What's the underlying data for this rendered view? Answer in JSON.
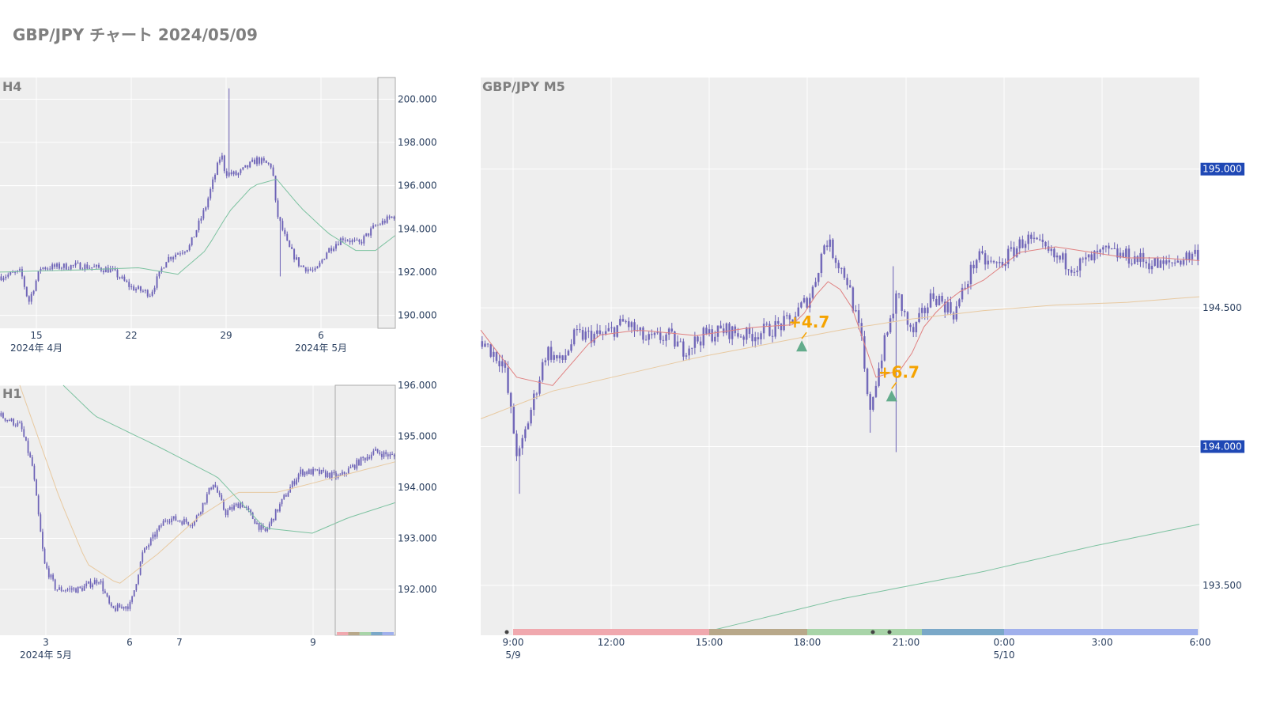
{
  "title": "GBP/JPY チャート 2024/05/09",
  "colors": {
    "plot_bg": "#eeeeee",
    "grid": "#ffffff",
    "candle": "#6a5fb5",
    "sma_short": "#e08080",
    "sma_mid": "#e8c9a0",
    "sma_long": "#7cc2a0",
    "arrow": "#4aa07a",
    "annotation": "#f5a300",
    "badge": "#1f48b5"
  },
  "chart_data": [
    {
      "id": "h4",
      "type": "candlestick",
      "title": "H4",
      "ylim": [
        189.4,
        201.0
      ],
      "y_ticks": [
        "190.000",
        "192.000",
        "194.000",
        "196.000",
        "198.000",
        "200.000"
      ],
      "x_ticks": [
        {
          "label": "15",
          "sub": "2024年 4月"
        },
        {
          "label": "22",
          "sub": ""
        },
        {
          "label": "29",
          "sub": ""
        },
        {
          "label": "6",
          "sub": "2024年 5月"
        }
      ],
      "series": [
        {
          "name": "",
          "kind": "candles",
          "close_path": [
            [
              0,
              191.8
            ],
            [
              0.05,
              192.0
            ],
            [
              0.07,
              190.6
            ],
            [
              0.1,
              192.2
            ],
            [
              0.2,
              192.3
            ],
            [
              0.28,
              192.1
            ],
            [
              0.33,
              191.3
            ],
            [
              0.38,
              191.0
            ],
            [
              0.42,
              192.6
            ],
            [
              0.48,
              193.2
            ],
            [
              0.52,
              195.0
            ],
            [
              0.56,
              197.5
            ],
            [
              0.57,
              196.6
            ],
            [
              0.6,
              196.5
            ],
            [
              0.65,
              197.2
            ],
            [
              0.69,
              196.9
            ],
            [
              0.7,
              194.8
            ],
            [
              0.73,
              193.2
            ],
            [
              0.76,
              192.3
            ],
            [
              0.8,
              192.0
            ],
            [
              0.83,
              193.0
            ],
            [
              0.87,
              193.6
            ],
            [
              0.91,
              193.3
            ],
            [
              0.95,
              194.1
            ],
            [
              1,
              194.6
            ]
          ],
          "spikes": [
            [
              0.578,
              200.5
            ],
            [
              0.71,
              191.8
            ]
          ]
        },
        {
          "name": "",
          "kind": "line",
          "color": "sma_long",
          "path": [
            [
              0,
              192.0
            ],
            [
              0.2,
              192.1
            ],
            [
              0.35,
              192.2
            ],
            [
              0.45,
              191.9
            ],
            [
              0.52,
              193.0
            ],
            [
              0.58,
              194.8
            ],
            [
              0.64,
              196.0
            ],
            [
              0.7,
              196.3
            ],
            [
              0.76,
              195.0
            ],
            [
              0.83,
              193.8
            ],
            [
              0.9,
              193.0
            ],
            [
              0.95,
              193.0
            ],
            [
              1,
              193.7
            ]
          ]
        }
      ]
    },
    {
      "id": "h1",
      "type": "candlestick",
      "title": "H1",
      "ylim": [
        191.1,
        196.0
      ],
      "y_ticks": [
        "192.000",
        "193.000",
        "194.000",
        "195.000",
        "196.000"
      ],
      "x_ticks": [
        {
          "label": "3",
          "sub": "2024年 5月"
        },
        {
          "label": "6",
          "sub": ""
        },
        {
          "label": "7",
          "sub": ""
        },
        {
          "label": "9",
          "sub": ""
        }
      ],
      "series": [
        {
          "name": "",
          "kind": "candles",
          "close_path": [
            [
              0,
              195.4
            ],
            [
              0.05,
              195.2
            ],
            [
              0.08,
              194.4
            ],
            [
              0.11,
              192.5
            ],
            [
              0.14,
              192.0
            ],
            [
              0.2,
              192.0
            ],
            [
              0.25,
              192.2
            ],
            [
              0.28,
              191.6
            ],
            [
              0.33,
              191.7
            ],
            [
              0.36,
              192.7
            ],
            [
              0.42,
              193.4
            ],
            [
              0.49,
              193.3
            ],
            [
              0.54,
              194.1
            ],
            [
              0.57,
              193.5
            ],
            [
              0.61,
              193.7
            ],
            [
              0.67,
              193.1
            ],
            [
              0.72,
              193.8
            ],
            [
              0.76,
              194.3
            ],
            [
              0.8,
              194.3
            ],
            [
              0.86,
              194.2
            ],
            [
              0.91,
              194.5
            ],
            [
              0.95,
              194.7
            ],
            [
              1,
              194.6
            ]
          ]
        },
        {
          "name": "",
          "kind": "line",
          "color": "sma_mid",
          "path": [
            [
              0.05,
              196.0
            ],
            [
              0.15,
              193.8
            ],
            [
              0.22,
              192.5
            ],
            [
              0.3,
              192.1
            ],
            [
              0.4,
              192.7
            ],
            [
              0.5,
              193.4
            ],
            [
              0.6,
              193.9
            ],
            [
              0.7,
              193.9
            ],
            [
              0.8,
              194.1
            ],
            [
              0.9,
              194.3
            ],
            [
              1,
              194.5
            ]
          ]
        },
        {
          "name": "",
          "kind": "line",
          "color": "sma_long",
          "path": [
            [
              0.16,
              196.0
            ],
            [
              0.24,
              195.4
            ],
            [
              0.4,
              194.8
            ],
            [
              0.55,
              194.2
            ],
            [
              0.67,
              193.2
            ],
            [
              0.79,
              193.1
            ],
            [
              0.88,
              193.4
            ],
            [
              1,
              193.7
            ]
          ]
        }
      ]
    },
    {
      "id": "m5",
      "type": "candlestick",
      "title": "GBP/JPY M5",
      "ylim": [
        193.32,
        195.33
      ],
      "y_ticks": [
        "193.500",
        "194.000",
        "194.500",
        "195.000"
      ],
      "highlighted_ticks": [
        "194.000",
        "195.000"
      ],
      "x_ticks": [
        {
          "label": "9:00",
          "sub": "5/9"
        },
        {
          "label": "12:00",
          "sub": ""
        },
        {
          "label": "15:00",
          "sub": ""
        },
        {
          "label": "18:00",
          "sub": ""
        },
        {
          "label": "21:00",
          "sub": ""
        },
        {
          "label": "0:00",
          "sub": "5/10"
        },
        {
          "label": "3:00",
          "sub": ""
        },
        {
          "label": "6:00",
          "sub": ""
        }
      ],
      "annotations": [
        {
          "text": "+4.7",
          "time": "17:50",
          "price": 194.36
        },
        {
          "text": "+6.7",
          "time": "20:35",
          "price": 194.18
        }
      ],
      "series": [
        {
          "name": "",
          "kind": "candles",
          "close_path": [
            [
              0,
              194.38
            ],
            [
              0.03,
              194.3
            ],
            [
              0.05,
              193.95
            ],
            [
              0.07,
              194.15
            ],
            [
              0.09,
              194.35
            ],
            [
              0.11,
              194.3
            ],
            [
              0.13,
              194.4
            ],
            [
              0.17,
              194.4
            ],
            [
              0.2,
              194.45
            ],
            [
              0.23,
              194.38
            ],
            [
              0.26,
              194.4
            ],
            [
              0.28,
              194.35
            ],
            [
              0.31,
              194.4
            ],
            [
              0.34,
              194.42
            ],
            [
              0.37,
              194.4
            ],
            [
              0.4,
              194.42
            ],
            [
              0.43,
              194.45
            ],
            [
              0.46,
              194.55
            ],
            [
              0.48,
              194.75
            ],
            [
              0.51,
              194.6
            ],
            [
              0.53,
              194.38
            ],
            [
              0.54,
              194.12
            ],
            [
              0.56,
              194.35
            ],
            [
              0.58,
              194.55
            ],
            [
              0.6,
              194.4
            ],
            [
              0.63,
              194.55
            ],
            [
              0.66,
              194.48
            ],
            [
              0.69,
              194.68
            ],
            [
              0.72,
              194.65
            ],
            [
              0.76,
              194.75
            ],
            [
              0.8,
              194.68
            ],
            [
              0.83,
              194.65
            ],
            [
              0.87,
              194.7
            ],
            [
              0.91,
              194.68
            ],
            [
              0.95,
              194.65
            ],
            [
              1,
              194.7
            ]
          ],
          "spikes": [
            [
              0.051,
              193.83
            ],
            [
              0.544,
              194.05
            ],
            [
              0.575,
              194.65
            ],
            [
              0.577,
              193.98
            ]
          ]
        },
        {
          "name": "",
          "kind": "line",
          "color": "sma_short",
          "path": [
            [
              0,
              194.42
            ],
            [
              0.05,
              194.25
            ],
            [
              0.1,
              194.22
            ],
            [
              0.16,
              194.4
            ],
            [
              0.22,
              194.42
            ],
            [
              0.3,
              194.4
            ],
            [
              0.38,
              194.43
            ],
            [
              0.44,
              194.44
            ],
            [
              0.48,
              194.6
            ],
            [
              0.51,
              194.55
            ],
            [
              0.55,
              194.25
            ],
            [
              0.59,
              194.28
            ],
            [
              0.62,
              194.45
            ],
            [
              0.66,
              194.55
            ],
            [
              0.7,
              194.6
            ],
            [
              0.75,
              194.7
            ],
            [
              0.8,
              194.72
            ],
            [
              0.85,
              194.7
            ],
            [
              0.9,
              194.68
            ],
            [
              0.95,
              194.68
            ],
            [
              1,
              194.67
            ]
          ]
        },
        {
          "name": "",
          "kind": "line",
          "color": "sma_mid",
          "path": [
            [
              0,
              194.1
            ],
            [
              0.1,
              194.2
            ],
            [
              0.2,
              194.26
            ],
            [
              0.3,
              194.32
            ],
            [
              0.4,
              194.37
            ],
            [
              0.5,
              194.42
            ],
            [
              0.6,
              194.46
            ],
            [
              0.7,
              194.49
            ],
            [
              0.8,
              194.51
            ],
            [
              0.9,
              194.52
            ],
            [
              1,
              194.54
            ]
          ]
        },
        {
          "name": "",
          "kind": "line",
          "color": "sma_long",
          "path": [
            [
              0.31,
              193.33
            ],
            [
              0.5,
              193.45
            ],
            [
              0.7,
              193.55
            ],
            [
              0.85,
              193.64
            ],
            [
              1,
              193.72
            ]
          ]
        }
      ],
      "session_bar": [
        "#f0a8ae",
        "#b8a88a",
        "#a8d4a8",
        "#7aa8c8",
        "#a0b0ec"
      ]
    }
  ]
}
